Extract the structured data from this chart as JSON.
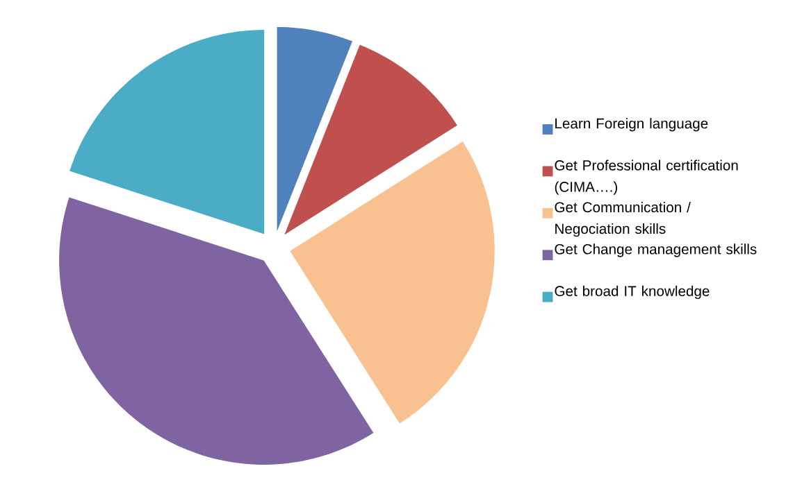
{
  "chart_data": {
    "type": "pie",
    "categories": [
      "Learn Foreign language",
      "Get Professional certification (CIMA….)",
      "Get Communication / Negociation skills",
      "Get Change management skills",
      "Get broad IT knowledge"
    ],
    "values": [
      6,
      10,
      25,
      39,
      20
    ],
    "colors": [
      "#4f81bd",
      "#c0504d",
      "#f9c090",
      "#8064a2",
      "#4bacc6"
    ],
    "legend": "right"
  }
}
